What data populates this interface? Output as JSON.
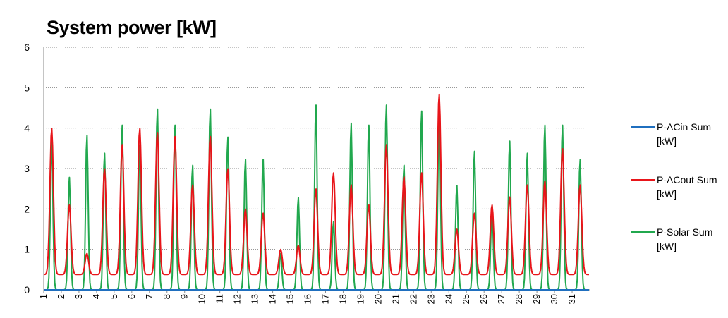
{
  "chart_data": {
    "type": "line",
    "title": "System power [kW]",
    "xlabel": "",
    "ylabel": "",
    "ylim": [
      0,
      6
    ],
    "y_ticks": [
      "0",
      "1",
      "2",
      "3",
      "4",
      "5",
      "6"
    ],
    "categories": [
      "1",
      "2",
      "3",
      "4",
      "5",
      "6",
      "7",
      "8",
      "9",
      "10",
      "11",
      "12",
      "13",
      "14",
      "15",
      "16",
      "17",
      "18",
      "19",
      "20",
      "21",
      "22",
      "23",
      "24",
      "25",
      "26",
      "27",
      "28",
      "29",
      "30",
      "31"
    ],
    "grid": "horizontal dotted",
    "legend_position": "right",
    "series": [
      {
        "name": "P-ACin Sum [kW]",
        "color": "#1f6fbf",
        "daily_peaks": [
          0,
          0,
          0,
          0,
          0,
          0,
          0,
          0,
          0,
          0,
          0,
          0,
          0,
          0,
          0,
          0,
          0,
          0,
          0,
          0,
          0,
          0,
          0,
          0,
          0,
          0,
          0,
          0,
          0,
          0,
          0
        ]
      },
      {
        "name": "P-ACout Sum [kW]",
        "color": "#e8151a",
        "daily_peaks": [
          4.0,
          2.1,
          0.9,
          3.0,
          3.6,
          4.0,
          3.9,
          3.8,
          2.6,
          3.8,
          3.0,
          2.0,
          1.9,
          1.0,
          1.1,
          2.5,
          2.9,
          2.6,
          2.1,
          3.6,
          2.8,
          2.9,
          4.85,
          1.5,
          1.9,
          2.1,
          2.3,
          2.6,
          2.7,
          3.5,
          2.6
        ]
      },
      {
        "name": "P-Solar Sum [kW]",
        "color": "#21a84e",
        "daily_peaks": [
          3.75,
          2.8,
          3.85,
          3.4,
          4.1,
          3.6,
          4.5,
          4.1,
          3.1,
          4.5,
          3.8,
          3.25,
          3.25,
          0.9,
          2.3,
          4.6,
          1.7,
          4.15,
          4.1,
          4.6,
          3.1,
          4.45,
          4.75,
          2.6,
          3.45,
          2.1,
          3.7,
          3.4,
          4.1,
          4.1,
          3.25
        ]
      }
    ]
  }
}
